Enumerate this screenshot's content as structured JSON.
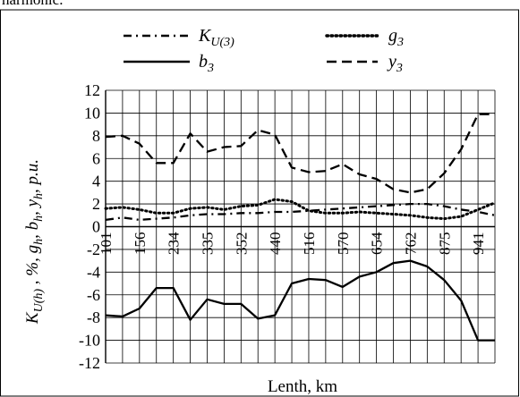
{
  "page": {
    "caption_fragment": "harmonic."
  },
  "chart_data": {
    "type": "line",
    "xlabel": "Lenth, km",
    "ylabel_parts": [
      "K",
      "U(h)",
      " ,  %,  g",
      "h",
      ", b",
      "h",
      ", y",
      "h",
      ", p.u."
    ],
    "ylim": [
      -12,
      12
    ],
    "ytick_step": 2,
    "x_tick_labels": [
      "101",
      "156",
      "234",
      "335",
      "352",
      "440",
      "516",
      "570",
      "654",
      "762",
      "875",
      "941"
    ],
    "n_points": 24,
    "grid": true,
    "legend_position": "top",
    "series": [
      {
        "name_main": "K",
        "name_sub": "U(3)",
        "style": "dash-dot",
        "color": "#000000",
        "values": [
          0.6,
          0.8,
          0.6,
          0.7,
          0.8,
          1.0,
          1.1,
          1.1,
          1.2,
          1.2,
          1.3,
          1.3,
          1.4,
          1.5,
          1.6,
          1.7,
          1.8,
          1.9,
          2.0,
          2.0,
          1.8,
          1.5,
          1.3,
          1.0
        ]
      },
      {
        "name_main": "g",
        "name_sub": "3",
        "style": "dotted",
        "color": "#000000",
        "values": [
          1.6,
          1.7,
          1.5,
          1.2,
          1.2,
          1.6,
          1.7,
          1.5,
          1.8,
          1.9,
          2.4,
          2.2,
          1.4,
          1.2,
          1.2,
          1.3,
          1.2,
          1.1,
          1.0,
          0.8,
          0.7,
          0.9,
          1.5,
          2.1
        ]
      },
      {
        "name_main": "b",
        "name_sub": "3",
        "style": "solid",
        "color": "#000000",
        "values": [
          -7.8,
          -7.9,
          -7.2,
          -5.4,
          -5.4,
          -8.2,
          -6.4,
          -6.8,
          -6.8,
          -8.1,
          -7.8,
          -5.0,
          -4.6,
          -4.7,
          -5.3,
          -4.4,
          -4.0,
          -3.2,
          -3.0,
          -3.5,
          -4.7,
          -6.5,
          -10.0,
          -10.0
        ]
      },
      {
        "name_main": "y",
        "name_sub": "3",
        "style": "dashed",
        "color": "#000000",
        "values": [
          7.9,
          8.0,
          7.3,
          5.6,
          5.6,
          8.2,
          6.6,
          7.0,
          7.1,
          8.5,
          8.1,
          5.2,
          4.8,
          4.9,
          5.5,
          4.6,
          4.2,
          3.3,
          3.0,
          3.3,
          4.7,
          6.8,
          9.9,
          9.9
        ]
      }
    ]
  }
}
